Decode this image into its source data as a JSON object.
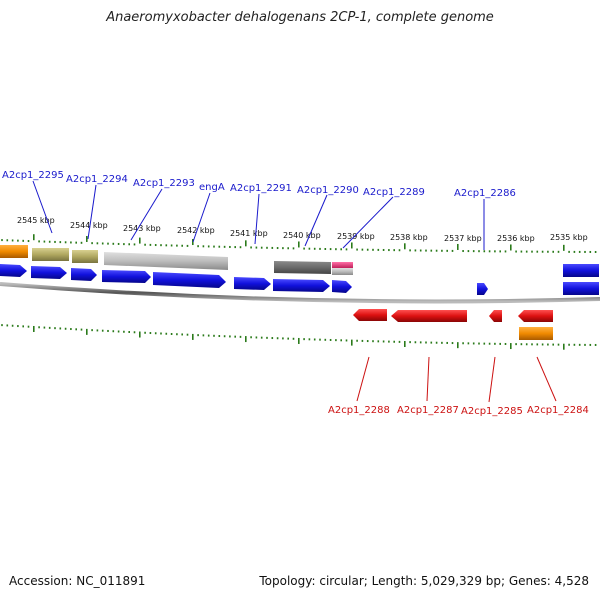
{
  "title": "Anaeromyxobacter dehalogenans 2CP-1, complete genome",
  "footer": {
    "accession": "Accession: NC_011891",
    "topology": "Topology: circular; Length: 5,029,329 bp; Genes: 4,528"
  },
  "tick_labels": [
    "2545 kbp",
    "2544 kbp",
    "2543 kbp",
    "2542 kbp",
    "2541 kbp",
    "2540 kbp",
    "2539 kbp",
    "2538 kbp",
    "2537 kbp",
    "2536 kbp",
    "2535 kbp"
  ],
  "top_gene_labels": [
    "A2cp1_2295",
    "A2cp1_2294",
    "A2cp1_2293",
    "engA",
    "A2cp1_2291",
    "A2cp1_2290",
    "A2cp1_2289",
    "A2cp1_2286"
  ],
  "bottom_gene_labels": [
    "A2cp1_2288",
    "A2cp1_2287",
    "A2cp1_2285",
    "A2cp1_2284"
  ],
  "colors": {
    "forward_label": "#1a1acc",
    "reverse_label": "#cc1111",
    "gene_blue": "#1111dd",
    "gene_red": "#dd1111",
    "tick_green": "#2a7a1a",
    "backbone": "#777777",
    "orange": "#f08a00",
    "olive": "#b0a860",
    "light_gray": "#bdbdbd",
    "dark_gray": "#6a6a6a",
    "pink": "#e0307a"
  }
}
